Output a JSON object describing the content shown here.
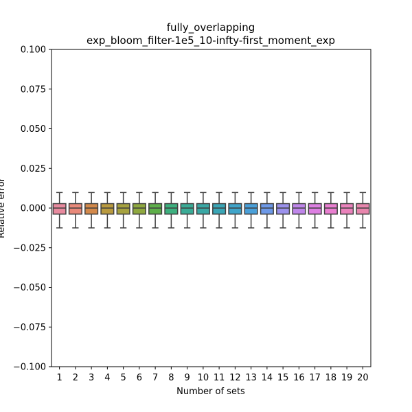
{
  "chart_data": {
    "type": "box",
    "title_lines": [
      "fully_overlapping",
      "exp_bloom_filter-1e5_10-infty-first_moment_exp"
    ],
    "xlabel": "Number of sets",
    "ylabel": "Relative error",
    "ylim": [
      -0.1,
      0.1
    ],
    "yticks": [
      -0.1,
      -0.075,
      -0.05,
      -0.025,
      0.0,
      0.025,
      0.05,
      0.075,
      0.1
    ],
    "ytick_labels": [
      "−0.100",
      "−0.075",
      "−0.050",
      "−0.025",
      "0.000",
      "0.025",
      "0.050",
      "0.075",
      "0.100"
    ],
    "categories": [
      "1",
      "2",
      "3",
      "4",
      "5",
      "6",
      "7",
      "8",
      "9",
      "10",
      "11",
      "12",
      "13",
      "14",
      "15",
      "16",
      "17",
      "18",
      "19",
      "20"
    ],
    "box_stats": {
      "whisker_low": -0.0125,
      "q1": -0.0038,
      "median": 0.0,
      "q3": 0.0028,
      "whisker_high": 0.0098
    },
    "colors": [
      "#e88a9e",
      "#e8897a",
      "#d3894b",
      "#b99a3f",
      "#a6a23f",
      "#8fa83f",
      "#5eaf4a",
      "#3db07f",
      "#3aab96",
      "#3aa8a5",
      "#3aa6b6",
      "#3fa4c9",
      "#4aa0d9",
      "#6d99e8",
      "#9b91ec",
      "#bf86ea",
      "#dd7fe2",
      "#e97fd0",
      "#ea82bb",
      "#e886ad"
    ],
    "grid": false,
    "legend": "none"
  }
}
